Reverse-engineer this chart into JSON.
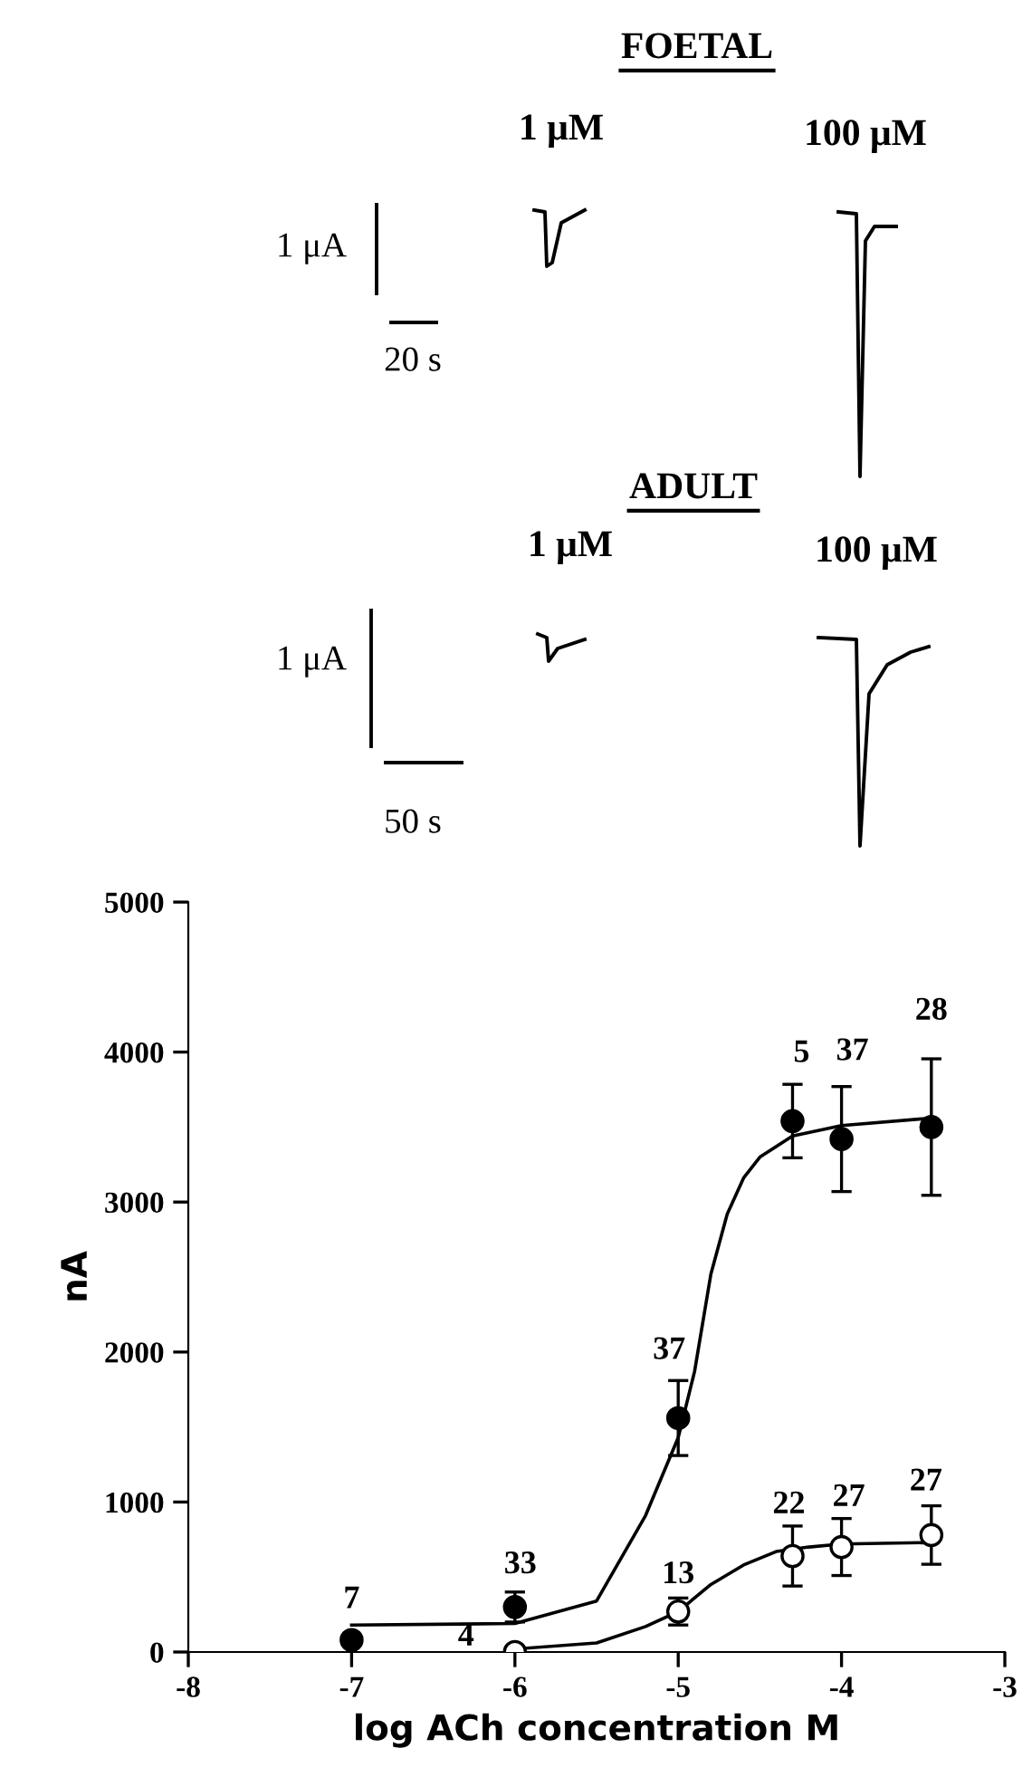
{
  "chart_data": {
    "type": "scatter",
    "xlabel": "log ACh concentration M",
    "ylabel": "nA",
    "xlim": [
      -8,
      -3
    ],
    "xticks": [
      -8,
      -7,
      -6,
      -5,
      -4,
      -3
    ],
    "ylim": [
      0,
      5000
    ],
    "yticks": [
      0,
      1000,
      2000,
      3000,
      4000,
      5000
    ],
    "grid": false,
    "legend": false,
    "series": [
      {
        "type": "scatter",
        "marker": "circle",
        "color": "#000000",
        "x": [
          -7,
          -6,
          -5,
          -4.3,
          -4,
          -3.45
        ],
        "values": [
          80,
          300,
          1560,
          3540,
          3420,
          3500
        ],
        "errors": [
          null,
          100,
          250,
          245,
          350,
          455
        ]
      },
      {
        "type": "scatter",
        "marker": "circle",
        "color": "#ffffff",
        "x": [
          -6,
          -5,
          -4.3,
          -4,
          -3.45
        ],
        "values": [
          0,
          270,
          640,
          700,
          780
        ],
        "errors": [
          null,
          90,
          200,
          190,
          195
        ]
      },
      {
        "type": "line",
        "marker": "none",
        "line_style": "solid",
        "color": "#000000",
        "x": [
          -7,
          -6,
          -5.5,
          -5.2,
          -5,
          -4.9,
          -4.8,
          -4.7,
          -4.6,
          -4.5,
          -4.3,
          -4,
          -3.45
        ],
        "values": [
          180,
          190,
          340,
          910,
          1430,
          1870,
          2520,
          2920,
          3160,
          3300,
          3440,
          3510,
          3560
        ]
      },
      {
        "type": "line",
        "marker": "none",
        "line_style": "solid",
        "color": "#000000",
        "x": [
          -6,
          -5.5,
          -5.2,
          -5,
          -4.8,
          -4.6,
          -4.4,
          -4.2,
          -4,
          -3.45
        ],
        "values": [
          20,
          60,
          170,
          270,
          450,
          580,
          670,
          700,
          720,
          730
        ]
      }
    ],
    "annotations": [
      "FOETAL",
      "1 μM",
      "100 μM",
      "1 μA",
      "20 s",
      "ADULT",
      "1 μM",
      "100 μM",
      "1 μA",
      "50 s",
      {
        "text": "7",
        "x": -7,
        "y": 80
      },
      {
        "text": "33",
        "x": -6,
        "y": 300
      },
      {
        "text": "4",
        "x": -6,
        "y": 0
      },
      {
        "text": "37",
        "x": -5,
        "y": 1560
      },
      {
        "text": "13",
        "x": -5,
        "y": 270
      },
      {
        "text": "5",
        "x": -4.3,
        "y": 3540
      },
      {
        "text": "37",
        "x": -4,
        "y": 3420
      },
      {
        "text": "28",
        "x": -3.45,
        "y": 3955
      },
      {
        "text": "22",
        "x": -4.3,
        "y": 640
      },
      {
        "text": "27",
        "x": -4,
        "y": 700
      },
      {
        "text": "27",
        "x": -3.45,
        "y": 780
      }
    ]
  }
}
